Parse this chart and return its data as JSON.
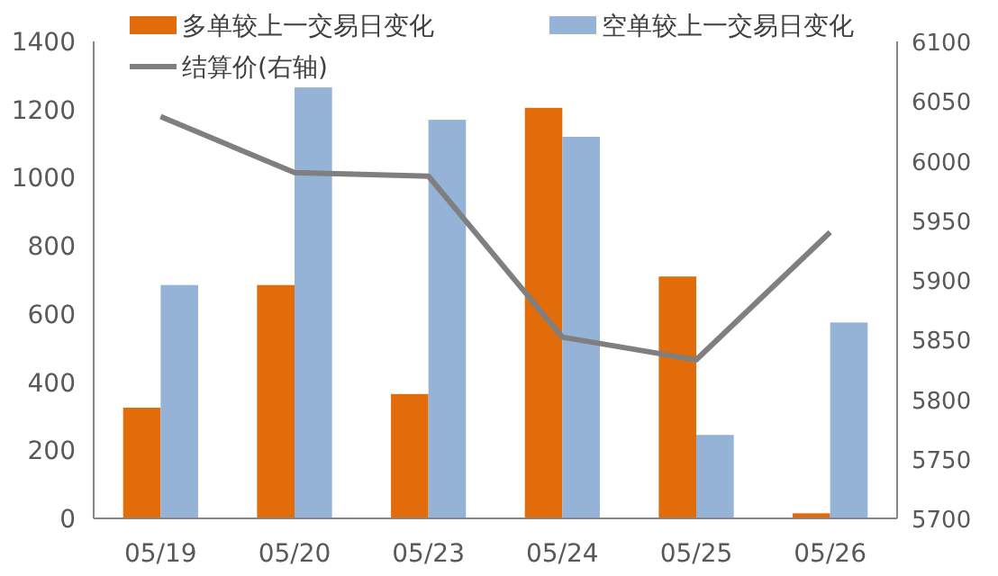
{
  "chart_data": {
    "type": "bar",
    "categories": [
      "05/19",
      "05/20",
      "05/23",
      "05/24",
      "05/25",
      "05/26"
    ],
    "series": [
      {
        "name": "多单较上一交易日变化",
        "color": "#e36c0a",
        "values": [
          325,
          685,
          365,
          1205,
          710,
          15
        ]
      },
      {
        "name": "空单较上一交易日变化",
        "color": "#95b3d7",
        "values": [
          685,
          1265,
          1170,
          1120,
          245,
          575
        ]
      },
      {
        "name": "结算价(右轴)",
        "type": "line",
        "axis": "y2",
        "color": "#7f7f7f",
        "values": [
          6037,
          5990,
          5987,
          5852,
          5833,
          5940
        ]
      }
    ],
    "ylim": [
      0,
      1400
    ],
    "yticks": [
      0,
      200,
      400,
      600,
      800,
      1000,
      1200,
      1400
    ],
    "y2lim": [
      5700,
      6100
    ],
    "y2ticks": [
      5700,
      5750,
      5800,
      5850,
      5900,
      5950,
      6000,
      6050,
      6100
    ],
    "legend": "top",
    "grid": false
  }
}
